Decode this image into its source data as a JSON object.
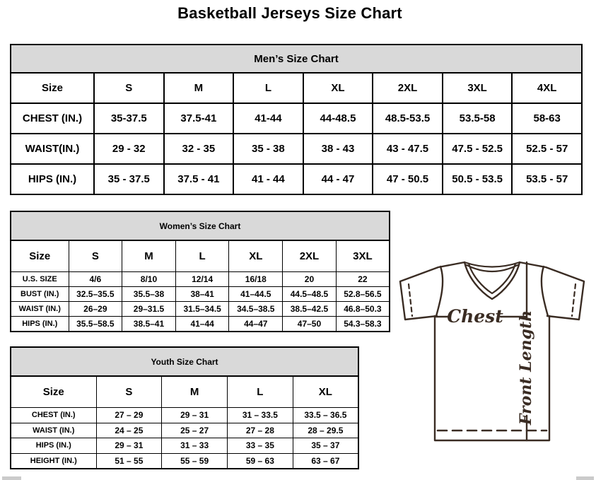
{
  "page_title": "Basketball Jerseys Size Chart",
  "colors": {
    "table_band_background": "#d9d9d9",
    "table_border": "#000000",
    "diagram_stroke": "#3a2c23"
  },
  "tables": {
    "men": {
      "title": "Men’s Size Chart",
      "columns": [
        "Size",
        "S",
        "M",
        "L",
        "XL",
        "2XL",
        "3XL",
        "4XL"
      ],
      "rows": [
        {
          "label": "CHEST (IN.)",
          "values": [
            "35-37.5",
            "37.5-41",
            "41-44",
            "44-48.5",
            "48.5-53.5",
            "53.5-58",
            "58-63"
          ]
        },
        {
          "label": "WAIST(IN.)",
          "values": [
            "29 - 32",
            "32 - 35",
            "35 - 38",
            "38 - 43",
            "43 - 47.5",
            "47.5 - 52.5",
            "52.5 - 57"
          ]
        },
        {
          "label": "HIPS (IN.)",
          "values": [
            "35 - 37.5",
            "37.5 - 41",
            "41 - 44",
            "44 - 47",
            "47 - 50.5",
            "50.5 - 53.5",
            "53.5 - 57"
          ]
        }
      ]
    },
    "women": {
      "title": "Women’s Size Chart",
      "columns": [
        "Size",
        "S",
        "M",
        "L",
        "XL",
        "2XL",
        "3XL"
      ],
      "rows": [
        {
          "label": "U.S. SIZE",
          "values": [
            "4/6",
            "8/10",
            "12/14",
            "16/18",
            "20",
            "22"
          ]
        },
        {
          "label": "BUST (IN.)",
          "values": [
            "32.5–35.5",
            "35.5–38",
            "38–41",
            "41–44.5",
            "44.5–48.5",
            "52.8–56.5"
          ]
        },
        {
          "label": "WAIST (IN.)",
          "values": [
            "26–29",
            "29–31.5",
            "31.5–34.5",
            "34.5–38.5",
            "38.5–42.5",
            "46.8–50.3"
          ]
        },
        {
          "label": "HIPS (IN.)",
          "values": [
            "35.5–58.5",
            "38.5–41",
            "41–44",
            "44–47",
            "47–50",
            "54.3–58.3"
          ]
        }
      ]
    },
    "youth": {
      "title": "Youth Size Chart",
      "columns": [
        "Size",
        "S",
        "M",
        "L",
        "XL"
      ],
      "rows": [
        {
          "label": "CHEST (IN.)",
          "values": [
            "27 – 29",
            "29 – 31",
            "31 – 33.5",
            "33.5 – 36.5"
          ]
        },
        {
          "label": "WAIST (IN.)",
          "values": [
            "24 – 25",
            "25 – 27",
            "27 – 28",
            "28 – 29.5"
          ]
        },
        {
          "label": "HIPS (IN.)",
          "values": [
            "29 – 31",
            "31 – 33",
            "33 – 35",
            "35 – 37"
          ]
        },
        {
          "label": "HEIGHT (IN.)",
          "values": [
            "51 – 55",
            "55 – 59",
            "59 – 63",
            "63 – 67"
          ]
        }
      ]
    }
  },
  "diagram": {
    "chest_label": "Chest",
    "front_length_label": "Front Length"
  }
}
